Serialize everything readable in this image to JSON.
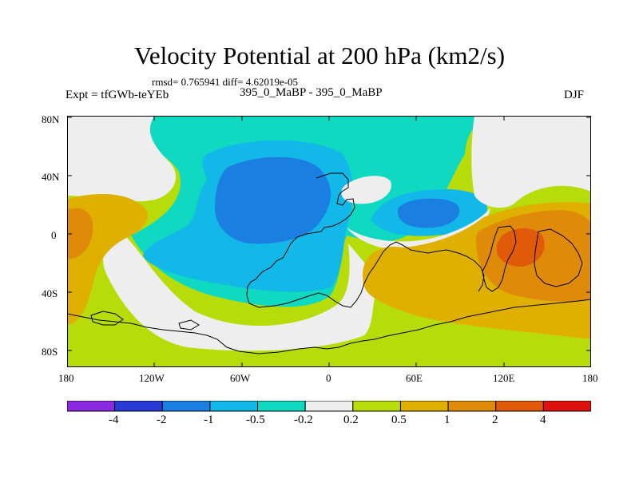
{
  "title": "Velocity Potential at 200 hPa (km2/s)",
  "stats": "rmsd= 0.765941 diff= 4.62019e-05",
  "experiment": "Expt = tfGWb-teYEb",
  "difference": "395_0_MaBP - 395_0_MaBP",
  "season": "DJF",
  "y_axis": {
    "labels": [
      "80N",
      "40N",
      "0",
      "40S",
      "80S"
    ]
  },
  "x_axis": {
    "labels": [
      "180",
      "120W",
      "60W",
      "0",
      "60E",
      "120E",
      "180"
    ]
  },
  "colorbar": {
    "labels": [
      "-4",
      "-2",
      "-1",
      "-0.5",
      "-0.2",
      "0.2",
      "0.5",
      "1",
      "2",
      "4"
    ],
    "colors": [
      "#8a2be2",
      "#2a3ad6",
      "#1a7fe0",
      "#12b9e8",
      "#0fd9c0",
      "#eeeeee",
      "#b8dc0a",
      "#e0b000",
      "#e08a0a",
      "#e05a0a",
      "#e01010"
    ]
  },
  "colors": {
    "white_band": "#eeeeee",
    "cyan": "#0fd9c0",
    "light_blue": "#12b9e8",
    "blue": "#1a7fe0",
    "green": "#b8dc0a",
    "yellow": "#e0b000",
    "orange": "#e08a0a",
    "dark_orange": "#e05a0a"
  }
}
